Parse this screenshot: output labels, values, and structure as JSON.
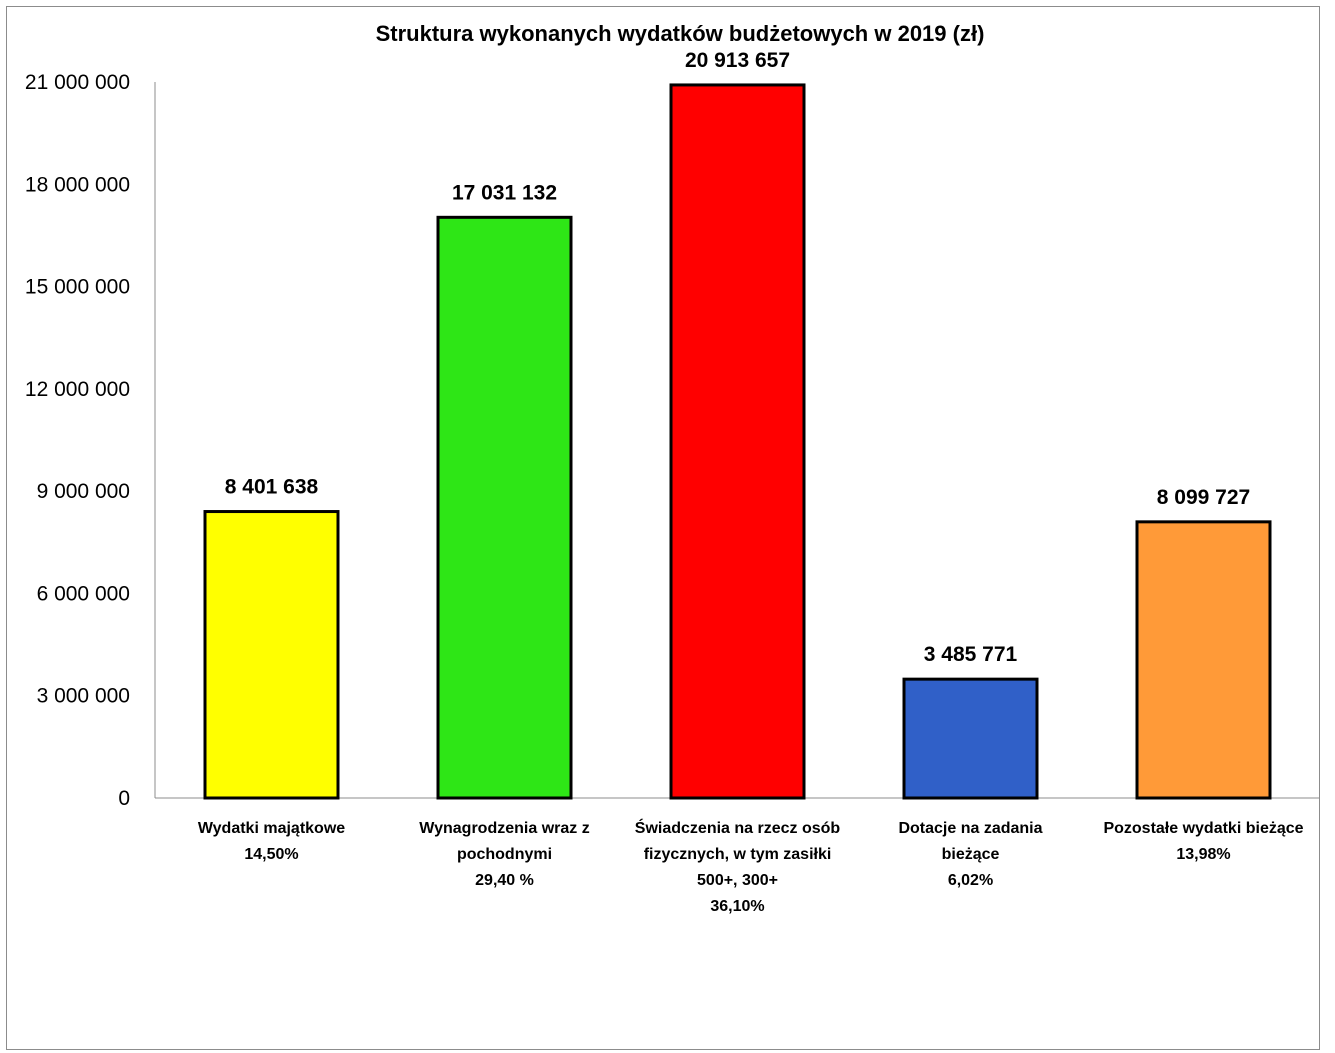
{
  "chart_data": {
    "type": "bar",
    "title": "Struktura wykonanych wydatków budżetowych w 2019  (zł)",
    "xlabel": "",
    "ylabel": "",
    "ylim": [
      0,
      21000000
    ],
    "yticks": [
      0,
      3000000,
      6000000,
      9000000,
      12000000,
      15000000,
      18000000,
      21000000
    ],
    "ytick_labels": [
      "0",
      "3 000 000",
      "6 000 000",
      "9 000 000",
      "12 000 000",
      "15 000 000",
      "18 000 000",
      "21 000 000"
    ],
    "grid": false,
    "legend": "none",
    "categories": [
      [
        "Wydatki majątkowe",
        "14,50%"
      ],
      [
        "Wynagrodzenia wraz z",
        "pochodnymi",
        "29,40 %"
      ],
      [
        "Świadczenia na rzecz osób",
        "fizycznych, w tym zasiłki",
        "500+, 300+",
        "36,10%"
      ],
      [
        "Dotacje na zadania",
        "bieżące",
        "6,02%"
      ],
      [
        "Pozostałe wydatki bieżące",
        "13,98%"
      ]
    ],
    "values": [
      8401638,
      17031132,
      20913657,
      3485771,
      8099727
    ],
    "value_labels": [
      "8 401 638",
      "17 031 132",
      "20 913 657",
      "3 485 771",
      "8 099 727"
    ],
    "colors": [
      "#ffff00",
      "#2ee616",
      "#ff0000",
      "#3060c8",
      "#ff9a38"
    ]
  }
}
